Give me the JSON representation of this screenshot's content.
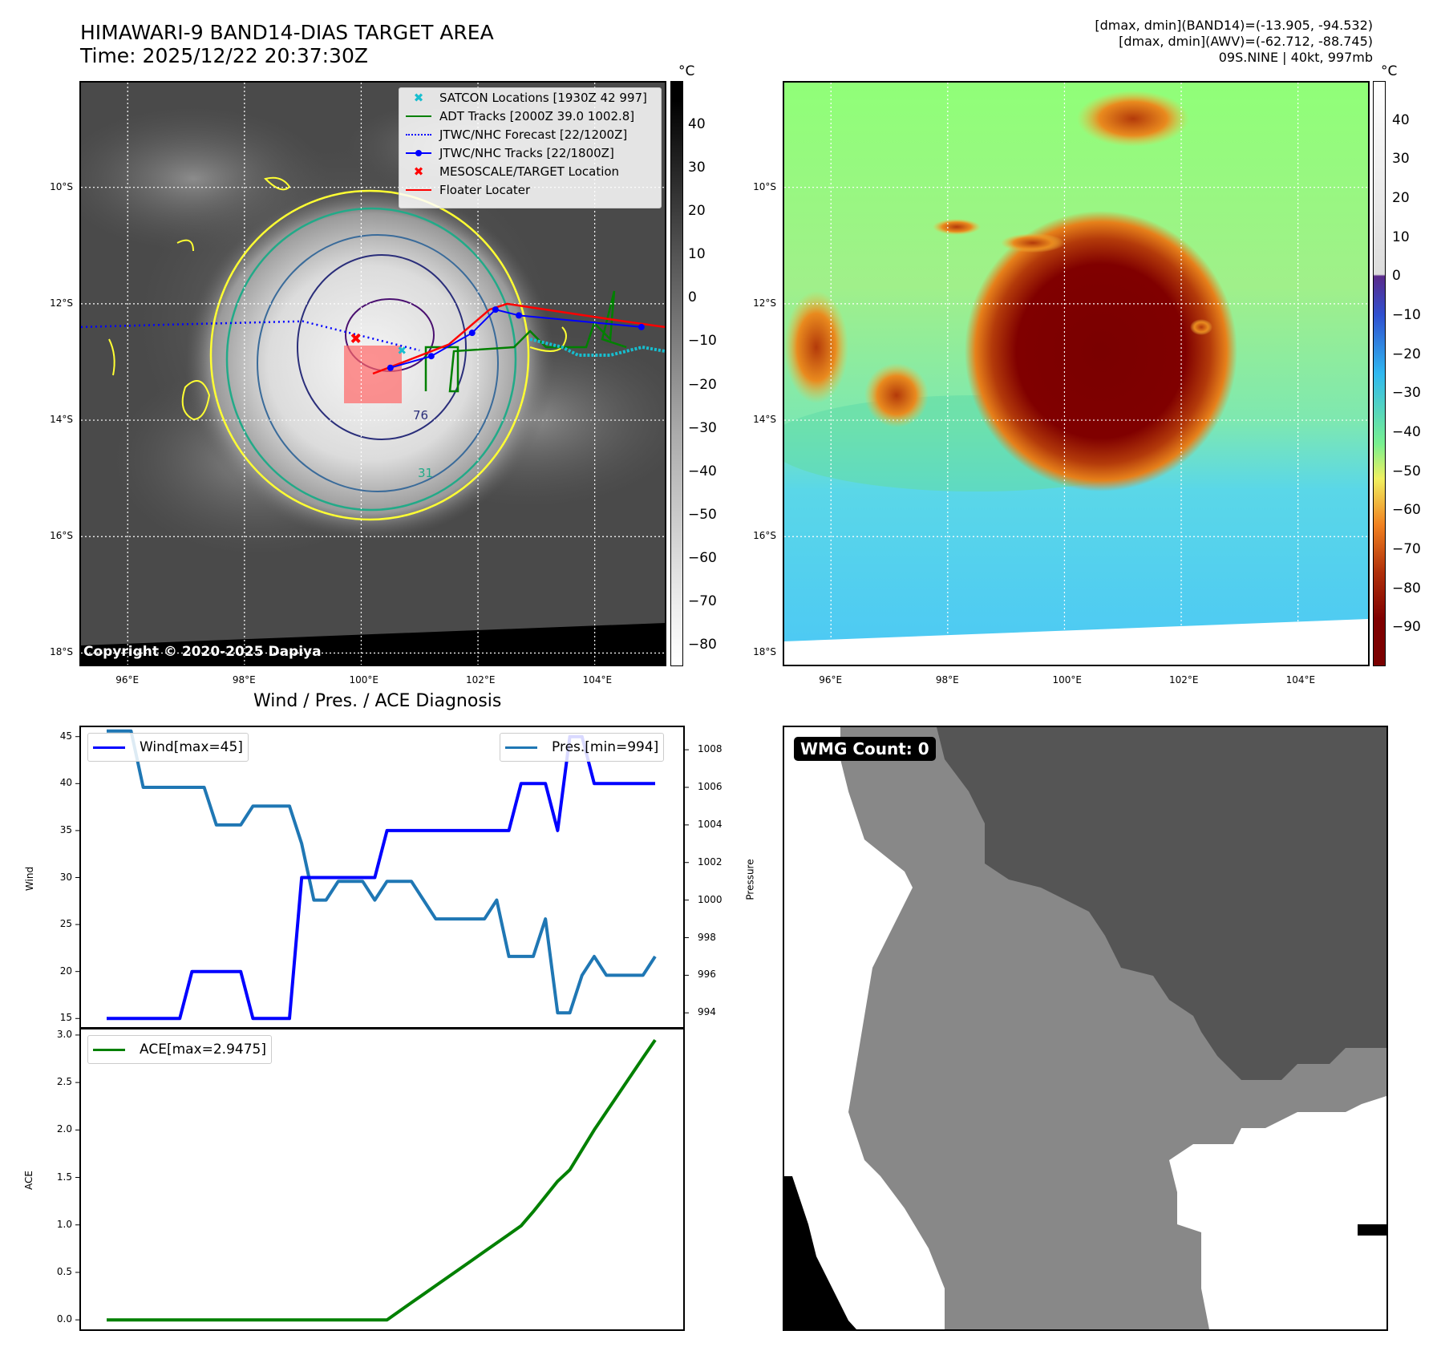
{
  "header": {
    "title_line1": "HIMAWARI-9 BAND14-DIAS TARGET AREA",
    "title_line2": "Time: 2025/12/22 20:37:30Z",
    "stats_line1": "[dmax, dmin](BAND14)=(-13.905, -94.532)",
    "stats_line2": "[dmax, dmin](AWV)=(-62.712, -88.745)",
    "stats_line3": "09S.NINE | 40kt, 997mb"
  },
  "maps": {
    "lat_labels": [
      "10°S",
      "12°S",
      "14°S",
      "16°S",
      "18°S"
    ],
    "lon_labels": [
      "96°E",
      "98°E",
      "100°E",
      "102°E",
      "104°E"
    ],
    "lat_values": [
      -10,
      -12,
      -14,
      -16,
      -18
    ],
    "lon_values": [
      96,
      98,
      100,
      102,
      104
    ],
    "extent": {
      "lon_min": 95.2,
      "lon_max": 105.2,
      "lat_min": -18.2,
      "lat_max": -8.2
    },
    "contour_labels": [
      "76",
      "31"
    ],
    "copyright": "Copyright © 2020-2025 Dapiya",
    "legend": {
      "satcon": "SATCON Locations [1930Z 42 997]",
      "adt": "ADT Tracks [2000Z 39.0 1002.8]",
      "jtwc_forecast": "JTWC/NHC Forecast [22/1200Z]",
      "jtwc_tracks": "JTWC/NHC Tracks [22/1800Z]",
      "mesoscale": "MESOSCALE/TARGET Location",
      "floater": "Floater Locater"
    },
    "colors": {
      "satcon": "#17becf",
      "adt": "#008000",
      "jtwc_forecast": "#0000ff",
      "jtwc_tracks": "#0000ff",
      "mesoscale": "#ff0000",
      "floater": "#ff0000"
    },
    "jtwc_forecast_track": [
      [
        95.2,
        -12.4
      ],
      [
        97,
        -12.35
      ],
      [
        99,
        -12.3
      ],
      [
        100.2,
        -12.6
      ],
      [
        101,
        -12.8
      ]
    ],
    "jtwc_track": [
      [
        100.5,
        -13.1
      ],
      [
        101.2,
        -12.9
      ],
      [
        101.9,
        -12.5
      ],
      [
        102.3,
        -12.1
      ],
      [
        102.7,
        -12.2
      ],
      [
        104.8,
        -12.4
      ]
    ],
    "floater_track": [
      [
        100.2,
        -13.2
      ],
      [
        100.6,
        -13.05
      ],
      [
        101.5,
        -12.7
      ],
      [
        102.2,
        -12.1
      ],
      [
        102.5,
        -12.0
      ],
      [
        104.5,
        -12.3
      ],
      [
        105.2,
        -12.4
      ]
    ],
    "mesoscale_location": [
      99.9,
      -12.6
    ],
    "satcon_location": [
      100.7,
      -12.8
    ]
  },
  "colorbar_left": {
    "unit": "°C",
    "ticks": [
      "40",
      "30",
      "20",
      "10",
      "0",
      "−10",
      "−20",
      "−30",
      "−40",
      "−50",
      "−60",
      "−70",
      "−80"
    ],
    "tick_values": [
      40,
      30,
      20,
      10,
      0,
      -10,
      -20,
      -30,
      -40,
      -50,
      -60,
      -70,
      -80
    ],
    "range": [
      -85,
      50
    ]
  },
  "colorbar_right": {
    "unit": "°C",
    "ticks": [
      "40",
      "30",
      "20",
      "10",
      "0",
      "−10",
      "−20",
      "−30",
      "−40",
      "−50",
      "−60",
      "−70",
      "−80",
      "−90"
    ],
    "tick_values": [
      40,
      30,
      20,
      10,
      0,
      -10,
      -20,
      -30,
      -40,
      -50,
      -60,
      -70,
      -80,
      -90
    ],
    "range": [
      -100,
      50
    ]
  },
  "diagnosis": {
    "title": "Wind / Pres. / ACE Diagnosis",
    "wind_ylabel": "Wind",
    "pressure_ylabel": "Pressure",
    "ace_ylabel": "ACE",
    "wind_legend": "Wind[max=45]",
    "pres_legend": "Pres.[min=994]",
    "ace_legend": "ACE[max=2.9475]",
    "wind_ticks": [
      "45",
      "40",
      "35",
      "30",
      "25",
      "20",
      "15"
    ],
    "pres_ticks": [
      "1008",
      "1006",
      "1004",
      "1002",
      "1000",
      "998",
      "996",
      "994"
    ],
    "ace_ticks": [
      "3.0",
      "2.5",
      "2.0",
      "1.5",
      "1.0",
      "0.5",
      "0.0"
    ],
    "colors": {
      "wind": "#0000ff",
      "pressure": "#1f77b4",
      "ace": "#008000"
    }
  },
  "chart_data": [
    {
      "type": "line",
      "title": "Wind / Pres. / ACE Diagnosis",
      "xlabel": "",
      "ylabel": "Wind",
      "ylim": [
        14,
        46
      ],
      "x": [
        0,
        1,
        2,
        3,
        4,
        5,
        6,
        7,
        8,
        9,
        10,
        11,
        12,
        13,
        14,
        15,
        16,
        17,
        18,
        19,
        20,
        21,
        22,
        23,
        24,
        25,
        26,
        27,
        28,
        29,
        30,
        31,
        32,
        33,
        34,
        35,
        36,
        37,
        38,
        39,
        40,
        41,
        42,
        43,
        44,
        45
      ],
      "series": [
        {
          "name": "Wind[max=45]",
          "axis": "left",
          "values": [
            15,
            15,
            15,
            15,
            15,
            15,
            15,
            20,
            20,
            20,
            20,
            20,
            15,
            15,
            15,
            15,
            30,
            30,
            30,
            30,
            30,
            30,
            30,
            35,
            35,
            35,
            35,
            35,
            35,
            35,
            35,
            35,
            35,
            35,
            40,
            40,
            40,
            35,
            45,
            45,
            40,
            40,
            40,
            40,
            40,
            40
          ]
        },
        {
          "name": "Pres.[min=994]",
          "axis": "right",
          "ylim": [
            993.2,
            1009.2
          ],
          "values": [
            1009,
            1009,
            1009,
            1006,
            1006,
            1006,
            1006,
            1006,
            1006,
            1004,
            1004,
            1004,
            1005,
            1005,
            1005,
            1005,
            1003,
            1000,
            1000,
            1001,
            1001,
            1001,
            1000,
            1001,
            1001,
            1001,
            1000,
            999,
            999,
            999,
            999,
            999,
            1000,
            997,
            997,
            997,
            999,
            994,
            994,
            996,
            997,
            996,
            996,
            996,
            996,
            997
          ]
        }
      ]
    },
    {
      "type": "line",
      "title": "",
      "xlabel": "",
      "ylabel": "ACE",
      "ylim": [
        -0.1,
        3.05
      ],
      "x": [
        0,
        1,
        2,
        3,
        4,
        5,
        6,
        7,
        8,
        9,
        10,
        11,
        12,
        13,
        14,
        15,
        16,
        17,
        18,
        19,
        20,
        21,
        22,
        23,
        24,
        25,
        26,
        27,
        28,
        29,
        30,
        31,
        32,
        33,
        34,
        35,
        36,
        37,
        38,
        39,
        40,
        41,
        42,
        43,
        44,
        45
      ],
      "series": [
        {
          "name": "ACE[max=2.9475]",
          "values": [
            0,
            0,
            0,
            0,
            0,
            0,
            0,
            0,
            0,
            0,
            0,
            0,
            0,
            0,
            0,
            0,
            0,
            0,
            0,
            0,
            0,
            0,
            0,
            0,
            0.09,
            0.18,
            0.27,
            0.36,
            0.45,
            0.54,
            0.63,
            0.72,
            0.81,
            0.9,
            0.99,
            1.14,
            1.3,
            1.46,
            1.58,
            1.79,
            2.0,
            2.19,
            2.38,
            2.57,
            2.76,
            2.9475
          ]
        }
      ]
    }
  ],
  "wmg": {
    "label": "WMG Count: 0"
  }
}
